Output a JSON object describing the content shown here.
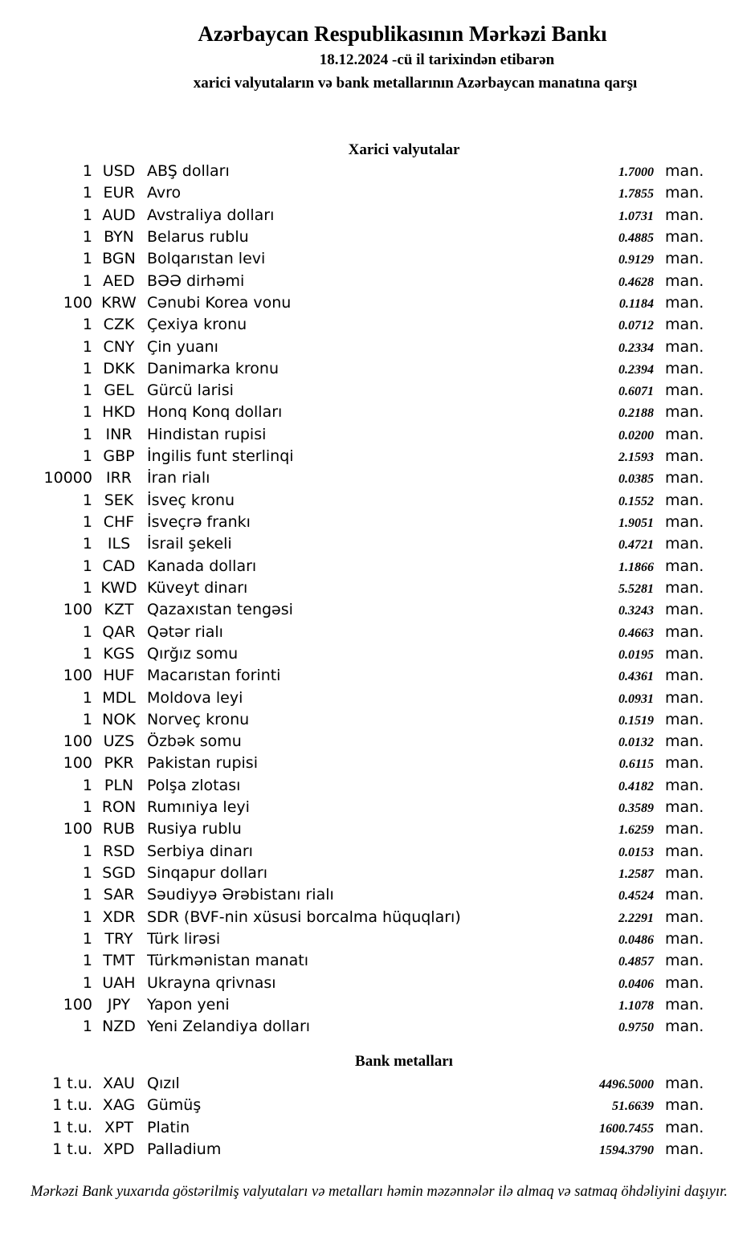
{
  "header": {
    "title": "Azərbaycan Respublikasının Mərkəzi Bankı",
    "date_line": "18.12.2024 -cü il tarixindən etibarən",
    "subtitle": "xarici valyutaların və bank metallarının Azərbaycan manatına qarşı"
  },
  "unit_suffix": "man.",
  "currencies": {
    "title": "Xarici valyutalar",
    "rows": [
      {
        "amount": "1",
        "code": "USD",
        "name": "ABŞ dolları",
        "rate": "1.7000"
      },
      {
        "amount": "1",
        "code": "EUR",
        "name": "Avro",
        "rate": "1.7855"
      },
      {
        "amount": "1",
        "code": "AUD",
        "name": "Avstraliya dolları",
        "rate": "1.0731"
      },
      {
        "amount": "1",
        "code": "BYN",
        "name": "Belarus rublu",
        "rate": "0.4885"
      },
      {
        "amount": "1",
        "code": "BGN",
        "name": "Bolqarıstan levi",
        "rate": "0.9129"
      },
      {
        "amount": "1",
        "code": "AED",
        "name": "BƏƏ dirhəmi",
        "rate": "0.4628"
      },
      {
        "amount": "100",
        "code": "KRW",
        "name": "Cənubi Korea vonu",
        "rate": "0.1184"
      },
      {
        "amount": "1",
        "code": "CZK",
        "name": "Çexiya kronu",
        "rate": "0.0712"
      },
      {
        "amount": "1",
        "code": "CNY",
        "name": "Çin yuanı",
        "rate": "0.2334"
      },
      {
        "amount": "1",
        "code": "DKK",
        "name": "Danimarka kronu",
        "rate": "0.2394"
      },
      {
        "amount": "1",
        "code": "GEL",
        "name": "Gürcü larisi",
        "rate": "0.6071"
      },
      {
        "amount": "1",
        "code": "HKD",
        "name": "Honq Konq dolları",
        "rate": "0.2188"
      },
      {
        "amount": "1",
        "code": "INR",
        "name": "Hindistan rupisi",
        "rate": "0.0200"
      },
      {
        "amount": "1",
        "code": "GBP",
        "name": "İngilis funt sterlinqi",
        "rate": "2.1593"
      },
      {
        "amount": "10000",
        "code": "IRR",
        "name": "İran rialı",
        "rate": "0.0385"
      },
      {
        "amount": "1",
        "code": "SEK",
        "name": "İsveç kronu",
        "rate": "0.1552"
      },
      {
        "amount": "1",
        "code": "CHF",
        "name": "İsveçrə frankı",
        "rate": "1.9051"
      },
      {
        "amount": "1",
        "code": "ILS",
        "name": "İsrail şekeli",
        "rate": "0.4721"
      },
      {
        "amount": "1",
        "code": "CAD",
        "name": "Kanada dolları",
        "rate": "1.1866"
      },
      {
        "amount": "1",
        "code": "KWD",
        "name": "Küveyt dinarı",
        "rate": "5.5281"
      },
      {
        "amount": "100",
        "code": "KZT",
        "name": "Qazaxıstan tengəsi",
        "rate": "0.3243"
      },
      {
        "amount": "1",
        "code": "QAR",
        "name": "Qətər rialı",
        "rate": "0.4663"
      },
      {
        "amount": "1",
        "code": "KGS",
        "name": "Qırğız somu",
        "rate": "0.0195"
      },
      {
        "amount": "100",
        "code": "HUF",
        "name": "Macarıstan forinti",
        "rate": "0.4361"
      },
      {
        "amount": "1",
        "code": "MDL",
        "name": "Moldova leyi",
        "rate": "0.0931"
      },
      {
        "amount": "1",
        "code": "NOK",
        "name": "Norveç kronu",
        "rate": "0.1519"
      },
      {
        "amount": "100",
        "code": "UZS",
        "name": "Özbək somu",
        "rate": "0.0132"
      },
      {
        "amount": "100",
        "code": "PKR",
        "name": "Pakistan rupisi",
        "rate": "0.6115"
      },
      {
        "amount": "1",
        "code": "PLN",
        "name": "Polşa zlotası",
        "rate": "0.4182"
      },
      {
        "amount": "1",
        "code": "RON",
        "name": "Rumıniya leyi",
        "rate": "0.3589"
      },
      {
        "amount": "100",
        "code": "RUB",
        "name": "Rusiya rublu",
        "rate": "1.6259"
      },
      {
        "amount": "1",
        "code": "RSD",
        "name": "Serbiya dinarı",
        "rate": "0.0153"
      },
      {
        "amount": "1",
        "code": "SGD",
        "name": "Sinqapur dolları",
        "rate": "1.2587"
      },
      {
        "amount": "1",
        "code": "SAR",
        "name": "Səudiyyə Ərəbistanı rialı",
        "rate": "0.4524"
      },
      {
        "amount": "1",
        "code": "XDR",
        "name": "SDR (BVF-nin xüsusi borcalma hüquqları)",
        "rate": "2.2291"
      },
      {
        "amount": "1",
        "code": "TRY",
        "name": "Türk lirəsi",
        "rate": "0.0486"
      },
      {
        "amount": "1",
        "code": "TMT",
        "name": "Türkmənistan manatı",
        "rate": "0.4857"
      },
      {
        "amount": "1",
        "code": "UAH",
        "name": "Ukrayna qrivnası",
        "rate": "0.0406"
      },
      {
        "amount": "100",
        "code": "JPY",
        "name": "Yapon yeni",
        "rate": "1.1078"
      },
      {
        "amount": "1",
        "code": "NZD",
        "name": "Yeni Zelandiya dolları",
        "rate": "0.9750"
      }
    ]
  },
  "metals": {
    "title": "Bank metalları",
    "rows": [
      {
        "amount": "1 t.u.",
        "code": "XAU",
        "name": "Qızıl",
        "rate": "4496.5000"
      },
      {
        "amount": "1 t.u.",
        "code": "XAG",
        "name": "Gümüş",
        "rate": "51.6639"
      },
      {
        "amount": "1 t.u.",
        "code": "XPT",
        "name": "Platin",
        "rate": "1600.7455"
      },
      {
        "amount": "1 t.u.",
        "code": "XPD",
        "name": "Palladium",
        "rate": "1594.3790"
      }
    ]
  },
  "footer": {
    "note": "Mərkəzi Bank yuxarıda göstərilmiş valyutaları və metalları həmin məzənnələr ilə almaq və satmaq öhdəliyini daşıyır."
  }
}
